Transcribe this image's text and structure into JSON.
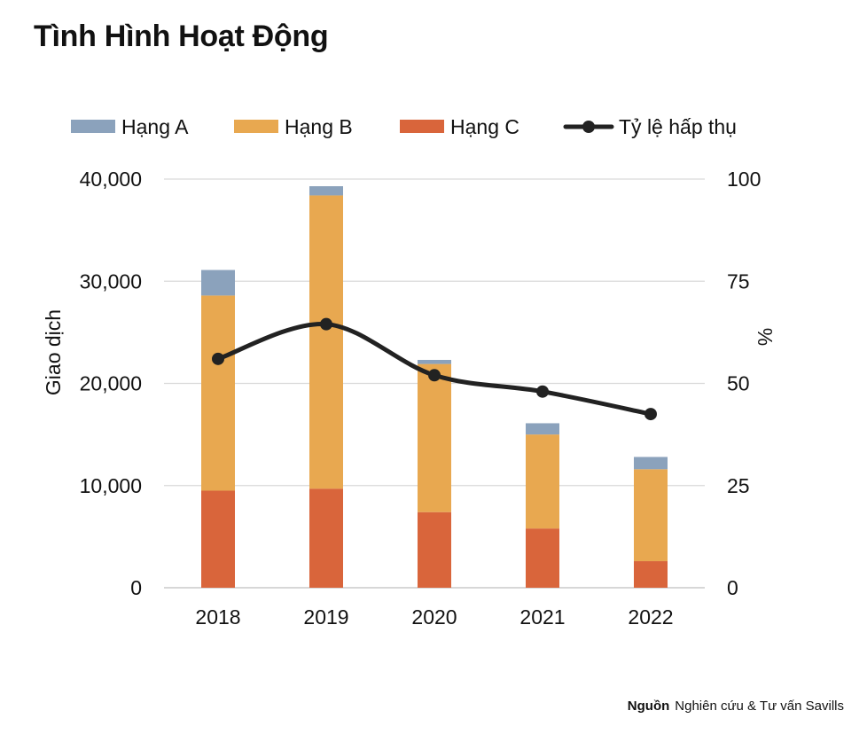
{
  "title": "Tình Hình Hoạt Động",
  "source": {
    "label": "Nguồn",
    "text": "Nghiên cứu & Tư vấn Savills"
  },
  "chart_data": {
    "type": "bar",
    "stacked": true,
    "categories": [
      "2018",
      "2019",
      "2020",
      "2021",
      "2022"
    ],
    "series": [
      {
        "name": "Hạng C",
        "axis": "left",
        "color": "#D9653B",
        "values": [
          9500,
          9700,
          7400,
          5800,
          2600
        ]
      },
      {
        "name": "Hạng B",
        "axis": "left",
        "color": "#E8A850",
        "values": [
          19100,
          28700,
          14500,
          9200,
          9000
        ]
      },
      {
        "name": "Hạng A",
        "axis": "left",
        "color": "#8BA2BC",
        "values": [
          2500,
          900,
          400,
          1100,
          1200
        ]
      },
      {
        "name": "Tỷ lệ hấp thụ",
        "axis": "right",
        "type": "line",
        "color": "#222222",
        "values": [
          56,
          64.5,
          52,
          48,
          42.5
        ]
      }
    ],
    "legend_order": [
      "Hạng A",
      "Hạng B",
      "Hạng C",
      "Tỷ lệ hấp thụ"
    ],
    "legend_position": "top",
    "ylabel": "Giao dịch",
    "y2label": "%",
    "ylim": [
      0,
      40000
    ],
    "y2lim": [
      0,
      100
    ],
    "yticks": [
      "0",
      "10,000",
      "20,000",
      "30,000",
      "40,000"
    ],
    "y2ticks": [
      "0",
      "25",
      "50",
      "75",
      "100"
    ],
    "grid": true
  }
}
